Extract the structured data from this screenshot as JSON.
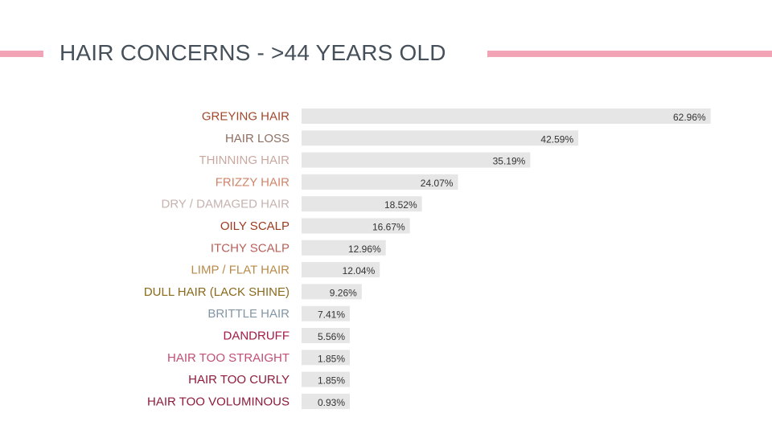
{
  "slide": {
    "title": "HAIR CONCERNS - >44 YEARS OLD",
    "accent_color": "#f2a3b5",
    "title_color": "#46505a"
  },
  "chart_data": {
    "type": "bar",
    "orientation": "horizontal",
    "categories": [
      "GREYING HAIR",
      "HAIR LOSS",
      "THINNING HAIR",
      "FRIZZY HAIR",
      "DRY / DAMAGED HAIR",
      "OILY SCALP",
      "ITCHY SCALP",
      "LIMP / FLAT HAIR",
      "DULL HAIR (LACK SHINE)",
      "BRITTLE HAIR",
      "DANDRUFF",
      "HAIR TOO STRAIGHT",
      "HAIR TOO CURLY",
      "HAIR TOO VOLUMINOUS"
    ],
    "values": [
      62.96,
      42.59,
      35.19,
      24.07,
      18.52,
      16.67,
      12.96,
      12.04,
      9.26,
      7.41,
      5.56,
      1.85,
      1.85,
      0.93
    ],
    "value_labels": [
      "62.96%",
      "42.59%",
      "35.19%",
      "24.07%",
      "18.52%",
      "16.67%",
      "12.96%",
      "12.04%",
      "9.26%",
      "7.41%",
      "5.56%",
      "1.85%",
      "1.85%",
      "0.93%"
    ],
    "category_colors": [
      "#a0482c",
      "#8f6f63",
      "#c9a8a0",
      "#d0846a",
      "#c6b3b0",
      "#9c3a1e",
      "#b85f5a",
      "#b78a48",
      "#8a6a1c",
      "#8296a6",
      "#a31945",
      "#c24f75",
      "#8e1b3c",
      "#8e1b3c"
    ],
    "bar_color": "#e6e6e6",
    "value_color": "#333333",
    "xlim": [
      0,
      70
    ],
    "grid": false,
    "legend": "none"
  }
}
